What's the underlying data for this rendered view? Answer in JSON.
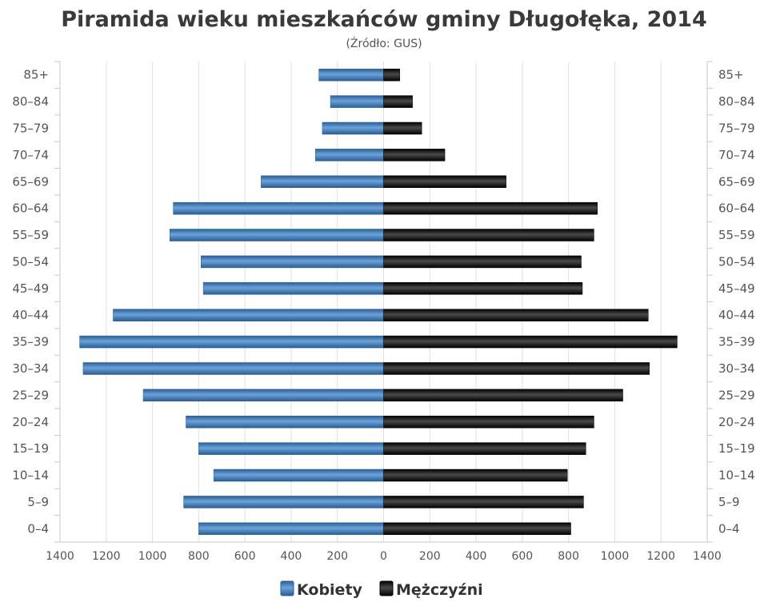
{
  "title": "Piramida wieku mieszkańców gminy Długołęka, 2014",
  "subtitle": "(Źródło: GUS)",
  "chart_data": {
    "type": "bar",
    "orientation": "horizontal-population-pyramid",
    "title": "Piramida wieku mieszkańców gminy Długołęka, 2014",
    "subtitle": "(Źródło: GUS)",
    "categories": [
      "85+",
      "80-84",
      "75-79",
      "70-74",
      "65-69",
      "60-64",
      "55-59",
      "50-54",
      "45-49",
      "40-44",
      "35-39",
      "30-34",
      "25-29",
      "20-24",
      "15-19",
      "10-14",
      "5-9",
      "0-4"
    ],
    "category_labels": [
      "85+",
      "80–84",
      "75–79",
      "70–74",
      "65–69",
      "60–64",
      "55–59",
      "50–54",
      "45–49",
      "40–44",
      "35–39",
      "30–34",
      "25–29",
      "20–24",
      "15–19",
      "10–14",
      "5–9",
      "0–4"
    ],
    "series": [
      {
        "name": "Kobiety",
        "side": "left",
        "color": "#3d7ab8",
        "values": [
          280,
          230,
          265,
          295,
          530,
          910,
          925,
          790,
          780,
          1170,
          1315,
          1300,
          1040,
          855,
          800,
          735,
          865,
          800
        ]
      },
      {
        "name": "Mężczyźni",
        "side": "right",
        "color": "#1a1a1a",
        "values": [
          70,
          125,
          165,
          265,
          530,
          925,
          910,
          855,
          860,
          1145,
          1270,
          1150,
          1035,
          910,
          875,
          795,
          865,
          810
        ]
      }
    ],
    "xlim": [
      -1400,
      1400
    ],
    "x_ticks": [
      -1400,
      -1200,
      -1000,
      -800,
      -600,
      -400,
      -200,
      0,
      200,
      400,
      600,
      800,
      1000,
      1200,
      1400
    ],
    "x_tick_labels": [
      "1400",
      "1200",
      "1000",
      "800",
      "600",
      "400",
      "200",
      "0",
      "200",
      "400",
      "600",
      "800",
      "1000",
      "1200",
      "1400"
    ],
    "grid": true,
    "legend": "bottom-center",
    "xlabel": "",
    "ylabel": ""
  },
  "legend": {
    "items": [
      {
        "label": "Kobiety"
      },
      {
        "label": "Mężczyźni"
      }
    ]
  }
}
